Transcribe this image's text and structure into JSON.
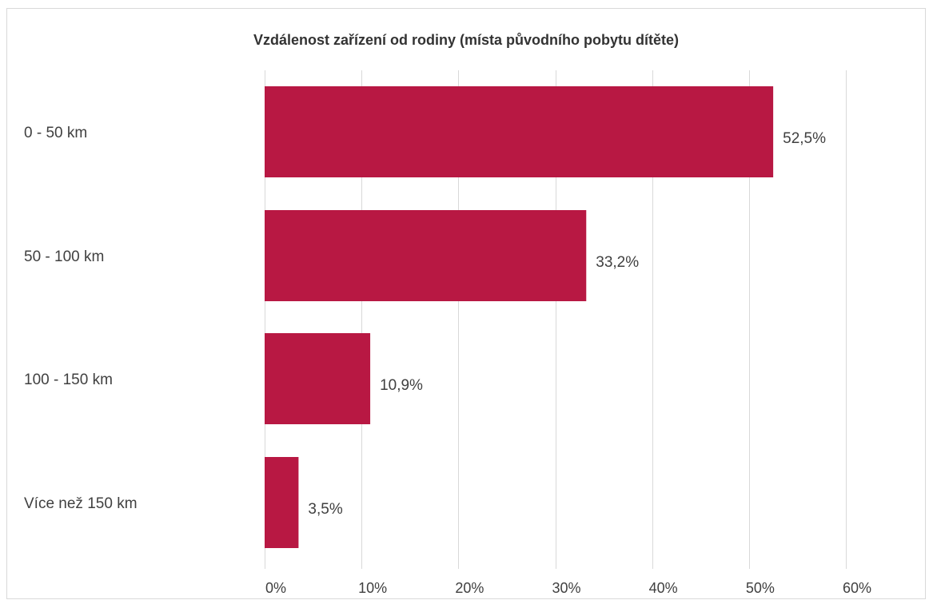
{
  "chart_data": {
    "type": "bar",
    "orientation": "horizontal",
    "title": "Vzdálenost zařízení od rodiny (místa původního pobytu dítěte)",
    "categories": [
      "0 - 50 km",
      "50 - 100 km",
      "100 - 150 km",
      "Více než 150 km"
    ],
    "values": [
      52.5,
      33.2,
      10.9,
      3.5
    ],
    "value_labels": [
      "52,5%",
      "33,2%",
      "10,9%",
      "3,5%"
    ],
    "xlim": [
      0,
      60
    ],
    "x_ticks": [
      0,
      10,
      20,
      30,
      40,
      50,
      60
    ],
    "x_tick_labels": [
      "0%",
      "10%",
      "20%",
      "30%",
      "40%",
      "50%",
      "60%"
    ],
    "xlabel": "",
    "ylabel": "",
    "grid": "vertical",
    "legend": "none",
    "bar_color": "#b81843"
  }
}
